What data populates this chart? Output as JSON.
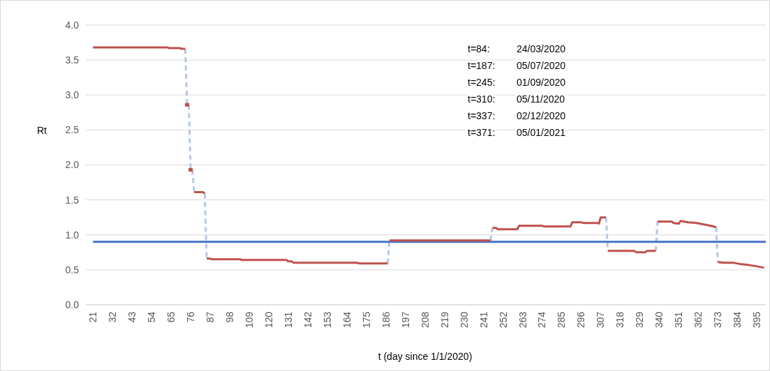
{
  "chart_data": {
    "type": "line",
    "xlabel": "t (day since 1/1/2020)",
    "ylabel": "Rt",
    "xlim": [
      17,
      400
    ],
    "xticks": [
      21,
      32,
      43,
      54,
      65,
      76,
      87,
      98,
      109,
      120,
      131,
      142,
      153,
      164,
      175,
      186,
      197,
      208,
      219,
      230,
      241,
      252,
      263,
      274,
      285,
      296,
      307,
      318,
      329,
      340,
      351,
      362,
      373,
      384,
      395
    ],
    "ylim": [
      0,
      4
    ],
    "yticks": [
      {
        "value": 0,
        "label": "0.0"
      },
      {
        "value": 0.5,
        "label": "0.5"
      },
      {
        "value": 1,
        "label": "1.0"
      },
      {
        "value": 1.5,
        "label": "1.5"
      },
      {
        "value": 2,
        "label": "2.0"
      },
      {
        "value": 2.5,
        "label": "2.5"
      },
      {
        "value": 3,
        "label": "3.0"
      },
      {
        "value": 3.5,
        "label": "3.5"
      },
      {
        "value": 4,
        "label": "4.0"
      }
    ],
    "grid": "y",
    "series": [
      {
        "color": "#b4c7e7",
        "line_style": "dashed",
        "x": [
          73,
          74,
          null,
          75,
          76,
          null,
          77,
          78,
          null,
          84,
          85,
          null,
          187,
          188,
          null,
          245,
          246,
          null,
          310,
          311,
          null,
          338,
          339,
          null,
          372,
          373
        ],
        "values": [
          3.66,
          2.86,
          null,
          2.86,
          1.93,
          null,
          1.93,
          1.61,
          null,
          1.59,
          0.66,
          null,
          0.59,
          0.92,
          null,
          0.92,
          1.1,
          null,
          1.25,
          0.77,
          null,
          0.77,
          1.19,
          null,
          1.11,
          0.61
        ]
      },
      {
        "color": "#4472c4",
        "x": [
          21,
          400
        ],
        "values": [
          0.9,
          0.9
        ]
      },
      {
        "type": "scatter",
        "color": "#c0504d",
        "marker": "square",
        "x": [
          74,
          76
        ],
        "values": [
          2.86,
          1.93
        ]
      },
      {
        "color": "#c0504d",
        "x": [
          21,
          63,
          64,
          70,
          71,
          73,
          null,
          78,
          83,
          84,
          null,
          85,
          87,
          88,
          104,
          105,
          130,
          131,
          133,
          134,
          170,
          171,
          187,
          null,
          188,
          245,
          null,
          246,
          248,
          249,
          260,
          261,
          274,
          275,
          290,
          291,
          296,
          297,
          305,
          306,
          307,
          310,
          null,
          311,
          326,
          327,
          332,
          333,
          338,
          null,
          339,
          347,
          348,
          351,
          352,
          356,
          361,
          365,
          369,
          372,
          null,
          373,
          376,
          382,
          386,
          390,
          395,
          399
        ],
        "values": [
          3.68,
          3.68,
          3.67,
          3.67,
          3.66,
          3.66,
          null,
          1.61,
          1.61,
          1.59,
          null,
          0.66,
          0.66,
          0.65,
          0.65,
          0.64,
          0.64,
          0.62,
          0.62,
          0.6,
          0.6,
          0.59,
          0.59,
          null,
          0.92,
          0.92,
          null,
          1.1,
          1.1,
          1.08,
          1.08,
          1.13,
          1.13,
          1.12,
          1.12,
          1.18,
          1.18,
          1.17,
          1.17,
          1.16,
          1.25,
          1.25,
          null,
          0.77,
          0.77,
          0.75,
          0.75,
          0.77,
          0.77,
          null,
          1.19,
          1.19,
          1.17,
          1.16,
          1.2,
          1.18,
          1.17,
          1.15,
          1.13,
          1.11,
          null,
          0.61,
          0.6,
          0.6,
          0.58,
          0.57,
          0.55,
          0.53
        ]
      }
    ],
    "annotations": [
      "t=84: 24/03/2020",
      "t=187: 05/07/2020",
      "t=245: 01/09/2020",
      "t=310: 05/11/2020",
      "t=337: 02/12/2020",
      "t=371: 05/01/2021"
    ]
  }
}
